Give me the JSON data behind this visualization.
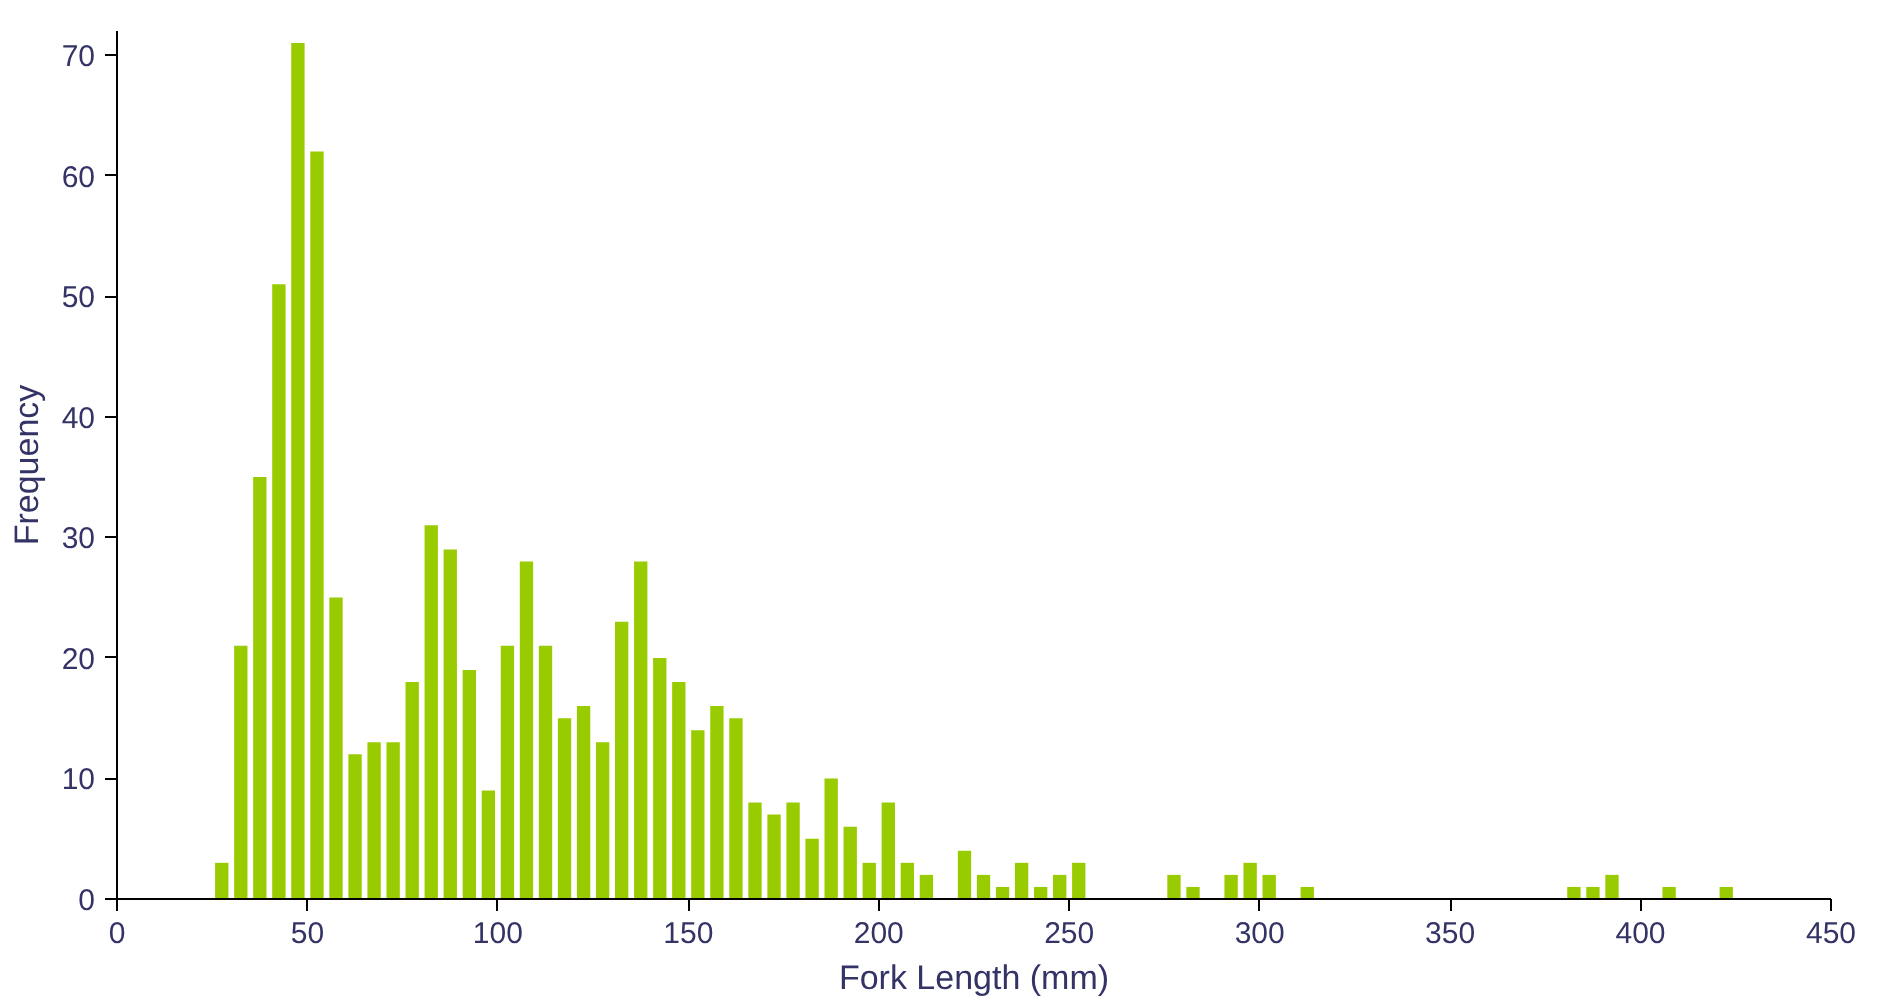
{
  "chart_data": {
    "type": "histogram",
    "xlabel": "Fork Length (mm)",
    "ylabel": "Frequency",
    "bins": [
      25,
      30,
      35,
      40,
      45,
      50,
      55,
      60,
      65,
      70,
      75,
      80,
      85,
      90,
      95,
      100,
      105,
      110,
      115,
      120,
      125,
      130,
      135,
      140,
      145,
      150,
      155,
      160,
      165,
      170,
      175,
      180,
      185,
      190,
      195,
      200,
      205,
      210,
      215,
      220,
      225,
      230,
      235,
      240,
      245,
      250,
      255,
      260,
      265,
      270,
      275,
      280,
      285,
      290,
      295,
      300,
      305,
      310,
      315,
      320,
      325,
      330,
      335,
      340,
      345,
      350,
      355,
      360,
      365,
      370,
      375,
      380,
      385,
      390,
      395,
      400,
      405,
      410,
      415,
      420,
      425
    ],
    "values": [
      3,
      21,
      35,
      51,
      71,
      62,
      25,
      12,
      13,
      13,
      18,
      31,
      29,
      19,
      9,
      21,
      28,
      21,
      15,
      16,
      13,
      23,
      28,
      20,
      18,
      14,
      16,
      15,
      8,
      7,
      8,
      5,
      10,
      6,
      3,
      8,
      3,
      2,
      0,
      4,
      2,
      1,
      3,
      1,
      2,
      3,
      0,
      0,
      0,
      0,
      2,
      1,
      0,
      2,
      3,
      2,
      0,
      1,
      0,
      0,
      0,
      0,
      0,
      0,
      0,
      0,
      0,
      0,
      0,
      0,
      0,
      1,
      1,
      2,
      0,
      0,
      1,
      0,
      0,
      1
    ],
    "color": "#99cc00",
    "xlim": [
      0,
      450
    ],
    "xticks": [
      0,
      50,
      100,
      150,
      200,
      250,
      300,
      350,
      400,
      450
    ],
    "ylim": [
      0,
      72
    ],
    "yticks": [
      0,
      10,
      20,
      30,
      40,
      50,
      60,
      70
    ],
    "grid": false
  }
}
